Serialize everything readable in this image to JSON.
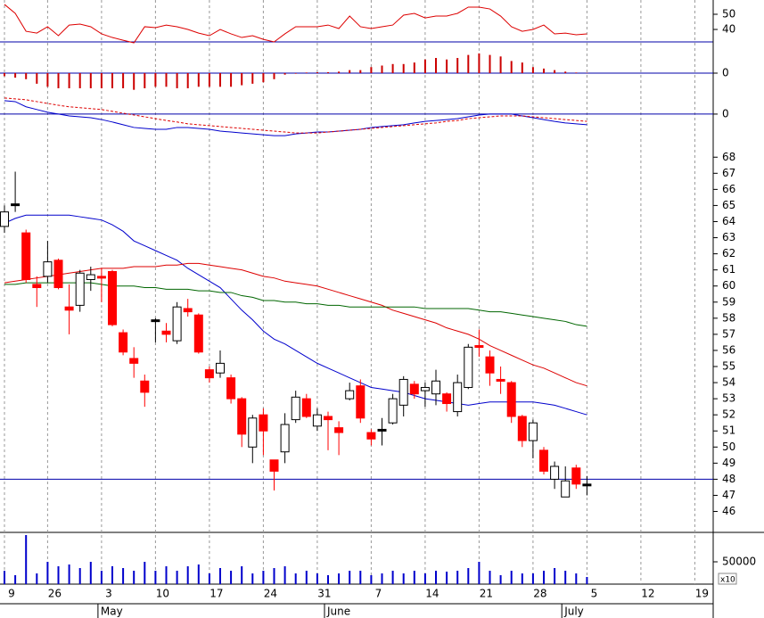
{
  "chart_data": [
    {
      "type": "line",
      "ylim": [
        31.2,
        59.4
      ],
      "yticks": [
        40,
        50
      ],
      "series": [
        {
          "color": "#dd0000",
          "values": [
            56.5,
            50.6,
            38.8,
            37.6,
            41.8,
            35.9,
            42.9,
            43.5,
            41.8,
            37.1,
            34.7,
            32.9,
            31.2,
            41.8,
            41.2,
            42.9,
            41.8,
            40.0,
            37.6,
            35.9,
            40.0,
            37.1,
            34.7,
            35.9,
            33.5,
            31.8,
            37.1,
            41.8,
            41.8,
            41.8,
            42.9,
            40.6,
            48.8,
            41.8,
            40.6,
            41.8,
            42.9,
            49.4,
            50.6,
            47.6,
            48.8,
            48.8,
            50.6,
            54.7,
            54.7,
            53.5,
            48.8,
            41.8,
            38.8,
            40.0,
            42.9,
            37.1,
            37.6,
            36.5,
            37.1,
            null,
            null,
            null,
            null,
            null,
            null,
            null,
            null,
            null,
            null
          ]
        }
      ]
    },
    {
      "type": "bar",
      "ylim": [
        -0.6,
        1.0
      ],
      "yticks": [
        0
      ],
      "grid": true,
      "color": "#cc0000",
      "values": [
        -0.1,
        -0.15,
        -0.2,
        -0.35,
        -0.45,
        -0.5,
        -0.5,
        -0.5,
        -0.5,
        -0.5,
        -0.5,
        -0.5,
        -0.55,
        -0.5,
        -0.45,
        -0.45,
        -0.5,
        -0.5,
        -0.45,
        -0.45,
        -0.45,
        -0.45,
        -0.4,
        -0.35,
        -0.3,
        -0.2,
        -0.05,
        -0.02,
        0.02,
        0.03,
        0.03,
        0.05,
        0.1,
        0.1,
        0.2,
        0.25,
        0.3,
        0.3,
        0.35,
        0.45,
        0.5,
        0.45,
        0.5,
        0.6,
        0.65,
        0.6,
        0.55,
        0.4,
        0.35,
        0.2,
        0.15,
        0.1,
        0.05,
        0.02,
        0.01,
        null,
        null,
        null,
        null,
        null,
        null,
        null,
        null,
        null,
        null
      ]
    },
    {
      "type": "line",
      "ylim": [
        -0.94,
        0.76
      ],
      "yticks": [
        0
      ],
      "grid": true,
      "series": [
        {
          "color": "#0000cc",
          "values": [
            0.44,
            0.41,
            0.24,
            0.15,
            0.06,
            0,
            -0.06,
            -0.09,
            -0.12,
            -0.18,
            -0.26,
            -0.35,
            -0.44,
            -0.47,
            -0.5,
            -0.5,
            -0.44,
            -0.44,
            -0.47,
            -0.5,
            -0.56,
            -0.59,
            -0.62,
            -0.65,
            -0.68,
            -0.71,
            -0.71,
            -0.65,
            -0.62,
            -0.59,
            -0.59,
            -0.56,
            -0.53,
            -0.5,
            -0.44,
            -0.41,
            -0.38,
            -0.35,
            -0.29,
            -0.24,
            -0.21,
            -0.18,
            -0.15,
            -0.09,
            -0.03,
            0,
            0,
            0,
            -0.06,
            -0.12,
            -0.18,
            -0.24,
            -0.29,
            -0.32,
            -0.35,
            null,
            null,
            null,
            null,
            null,
            null,
            null,
            null,
            null,
            null
          ]
        },
        {
          "color": "#dd0000",
          "dashed": true,
          "values": [
            0.53,
            0.5,
            0.47,
            0.41,
            0.35,
            0.29,
            0.24,
            0.21,
            0.18,
            0.15,
            0.09,
            0.03,
            -0.03,
            -0.09,
            -0.15,
            -0.21,
            -0.26,
            -0.32,
            -0.35,
            -0.38,
            -0.41,
            -0.44,
            -0.47,
            -0.5,
            -0.53,
            -0.56,
            -0.59,
            -0.62,
            -0.62,
            -0.62,
            -0.59,
            -0.56,
            -0.53,
            -0.5,
            -0.47,
            -0.44,
            -0.41,
            -0.38,
            -0.35,
            -0.32,
            -0.29,
            -0.24,
            -0.21,
            -0.15,
            -0.12,
            -0.09,
            -0.06,
            -0.06,
            -0.06,
            -0.09,
            -0.12,
            -0.15,
            -0.18,
            -0.21,
            -0.24,
            null,
            null,
            null,
            null,
            null,
            null,
            null,
            null,
            null,
            null
          ]
        }
      ]
    },
    {
      "type": "candlestick",
      "categories": [
        "9",
        null,
        null,
        null,
        "26",
        null,
        null,
        null,
        null,
        "3",
        null,
        null,
        null,
        null,
        "10",
        null,
        null,
        null,
        null,
        "17",
        null,
        null,
        null,
        null,
        "24",
        null,
        null,
        null,
        null,
        "31",
        null,
        null,
        null,
        null,
        "7",
        null,
        null,
        null,
        null,
        "14",
        null,
        null,
        null,
        null,
        "21",
        null,
        null,
        null,
        null,
        "28",
        null,
        null,
        null,
        null,
        "5",
        null,
        null,
        null,
        null,
        "12",
        null,
        null,
        null,
        null,
        "19"
      ],
      "months": [
        null,
        null,
        null,
        null,
        null,
        null,
        null,
        null,
        null,
        "May",
        null,
        null,
        null,
        null,
        null,
        null,
        null,
        null,
        null,
        null,
        null,
        null,
        null,
        null,
        null,
        null,
        null,
        null,
        null,
        null,
        "June",
        null,
        null,
        null,
        null,
        null,
        null,
        null,
        null,
        null,
        null,
        null,
        null,
        null,
        null,
        null,
        null,
        null,
        null,
        null,
        null,
        null,
        "July",
        null,
        null,
        null,
        null,
        null,
        null,
        null,
        null,
        null,
        null,
        null,
        null
      ],
      "ylim": [
        44.7,
        68.9
      ],
      "yticks": [
        46,
        47,
        48,
        49,
        50,
        51,
        52,
        53,
        54,
        55,
        56,
        57,
        58,
        59,
        60,
        61,
        62,
        63,
        64,
        65,
        66,
        67,
        68
      ],
      "hline": 48,
      "up_color": "#ffffff",
      "down_color": "#ff0000",
      "open": [
        63.7,
        65.1,
        63.3,
        60.1,
        60.6,
        61.6,
        58.7,
        58.8,
        60.4,
        60.6,
        60.9,
        57.1,
        55.5,
        54.1,
        57.9,
        57.2,
        56.6,
        58.6,
        58.2,
        54.8,
        54.6,
        54.3,
        53.0,
        50.0,
        52.0,
        49.2,
        49.7,
        51.7,
        53.0,
        51.3,
        51.9,
        51.2,
        53.0,
        53.8,
        50.9,
        51.1,
        51.5,
        52.6,
        53.9,
        53.5,
        53.3,
        53.3,
        52.2,
        53.7,
        56.3,
        55.6,
        54.2,
        54.0,
        51.9,
        50.4,
        49.8,
        48.0,
        46.9,
        48.7,
        47.7,
        null,
        null,
        null,
        null,
        null,
        null,
        null,
        null,
        null,
        null
      ],
      "high": [
        65.0,
        67.1,
        63.5,
        60.6,
        62.8,
        61.7,
        60.1,
        61.0,
        61.2,
        61.1,
        61.0,
        57.3,
        56.2,
        54.5,
        58.0,
        57.7,
        59.0,
        59.2,
        58.3,
        55.0,
        56.0,
        54.5,
        53.1,
        52.0,
        52.4,
        49.2,
        52.1,
        53.5,
        53.3,
        52.4,
        52.2,
        51.6,
        54.0,
        54.2,
        51.1,
        51.8,
        53.3,
        54.4,
        54.1,
        54.0,
        54.8,
        53.4,
        54.5,
        56.4,
        57.3,
        56.0,
        55.0,
        54.1,
        52.0,
        51.7,
        50.0,
        49.1,
        48.8,
        48.9,
        48.2,
        null,
        null,
        null,
        null,
        null,
        null,
        null,
        null,
        null,
        null
      ],
      "low": [
        63.3,
        64.6,
        60.2,
        58.7,
        60.2,
        59.8,
        57.0,
        58.4,
        59.7,
        59.0,
        57.5,
        55.7,
        54.3,
        52.5,
        56.5,
        56.5,
        56.4,
        58.1,
        55.8,
        54.0,
        54.3,
        52.7,
        50.0,
        49.0,
        49.5,
        47.3,
        49.0,
        51.5,
        51.8,
        51.0,
        49.8,
        49.5,
        52.9,
        51.5,
        50.1,
        50.1,
        51.4,
        51.9,
        53.0,
        52.5,
        52.6,
        52.2,
        51.9,
        53.6,
        55.6,
        53.8,
        53.3,
        51.5,
        50.0,
        49.3,
        48.3,
        47.4,
        46.9,
        47.4,
        47.0,
        null,
        null,
        null,
        null,
        null,
        null,
        null,
        null,
        null,
        null
      ],
      "close": [
        64.6,
        65.1,
        60.4,
        59.9,
        61.5,
        59.9,
        58.5,
        60.8,
        60.7,
        60.5,
        57.6,
        55.9,
        55.2,
        53.4,
        57.9,
        57.0,
        58.7,
        58.4,
        55.9,
        54.3,
        55.2,
        53.0,
        50.8,
        51.8,
        51.0,
        48.5,
        51.4,
        53.1,
        51.9,
        52.0,
        51.7,
        50.9,
        53.5,
        51.8,
        50.5,
        51.1,
        53.0,
        54.2,
        53.3,
        53.7,
        54.1,
        52.7,
        54.0,
        56.2,
        56.2,
        54.6,
        54.1,
        51.9,
        50.4,
        51.5,
        48.5,
        48.8,
        47.9,
        47.7,
        47.7,
        null,
        null,
        null,
        null,
        null,
        null,
        null,
        null,
        null,
        null
      ],
      "lines": [
        {
          "color": "#0000cc",
          "values": [
            63.9,
            64.2,
            64.4,
            64.4,
            64.4,
            64.4,
            64.4,
            64.3,
            64.2,
            64.1,
            63.8,
            63.4,
            62.8,
            62.5,
            62.2,
            61.9,
            61.6,
            61.1,
            60.7,
            60.3,
            59.9,
            59.2,
            58.5,
            57.9,
            57.2,
            56.7,
            56.4,
            56.0,
            55.6,
            55.2,
            54.9,
            54.6,
            54.3,
            54.0,
            53.7,
            53.6,
            53.5,
            53.4,
            53.2,
            53.0,
            52.9,
            52.8,
            52.7,
            52.6,
            52.7,
            52.8,
            52.8,
            52.8,
            52.8,
            52.8,
            52.7,
            52.6,
            52.4,
            52.2,
            52.0,
            null,
            null,
            null,
            null,
            null,
            null,
            null,
            null,
            null,
            null
          ]
        },
        {
          "color": "#dd0000",
          "values": [
            60.2,
            60.3,
            60.4,
            60.5,
            60.6,
            60.7,
            60.8,
            60.9,
            61.0,
            61.1,
            61.1,
            61.1,
            61.2,
            61.2,
            61.2,
            61.3,
            61.3,
            61.4,
            61.4,
            61.3,
            61.2,
            61.1,
            61.0,
            60.8,
            60.6,
            60.5,
            60.3,
            60.2,
            60.1,
            60.0,
            59.8,
            59.6,
            59.4,
            59.2,
            59.0,
            58.8,
            58.5,
            58.3,
            58.1,
            57.9,
            57.7,
            57.4,
            57.2,
            57.0,
            56.7,
            56.3,
            56.0,
            55.7,
            55.4,
            55.1,
            54.9,
            54.6,
            54.3,
            54.0,
            53.8,
            null,
            null,
            null,
            null,
            null,
            null,
            null,
            null,
            null,
            null
          ]
        },
        {
          "color": "#006600",
          "values": [
            60.1,
            60.1,
            60.2,
            60.2,
            60.2,
            60.2,
            60.2,
            60.2,
            60.2,
            60.1,
            60.0,
            60.0,
            60.0,
            59.9,
            59.9,
            59.8,
            59.8,
            59.8,
            59.7,
            59.7,
            59.6,
            59.6,
            59.4,
            59.3,
            59.1,
            59.1,
            59.0,
            59.0,
            58.9,
            58.9,
            58.8,
            58.8,
            58.7,
            58.7,
            58.7,
            58.7,
            58.7,
            58.7,
            58.7,
            58.6,
            58.6,
            58.6,
            58.6,
            58.6,
            58.5,
            58.4,
            58.4,
            58.3,
            58.2,
            58.1,
            58.0,
            57.9,
            57.8,
            57.6,
            57.5,
            null,
            null,
            null,
            null,
            null,
            null,
            null,
            null,
            null,
            null
          ]
        }
      ]
    },
    {
      "type": "bar",
      "ylim": [
        0,
        116000
      ],
      "yticks": [
        50000
      ],
      "multiplier_label": "x10",
      "color": "#0000cc",
      "values": [
        30000,
        20000,
        110000,
        24000,
        50000,
        40000,
        44000,
        36000,
        50000,
        30000,
        40000,
        36000,
        30000,
        50000,
        30000,
        40000,
        30000,
        40000,
        44000,
        24000,
        36000,
        30000,
        40000,
        24000,
        30000,
        36000,
        40000,
        24000,
        30000,
        24000,
        20000,
        24000,
        30000,
        30000,
        20000,
        24000,
        30000,
        24000,
        30000,
        24000,
        30000,
        28000,
        30000,
        36000,
        50000,
        30000,
        20000,
        30000,
        24000,
        24000,
        30000,
        36000,
        30000,
        24000,
        16000,
        null,
        null,
        null,
        null,
        null,
        null,
        null,
        null,
        null,
        null
      ]
    }
  ]
}
